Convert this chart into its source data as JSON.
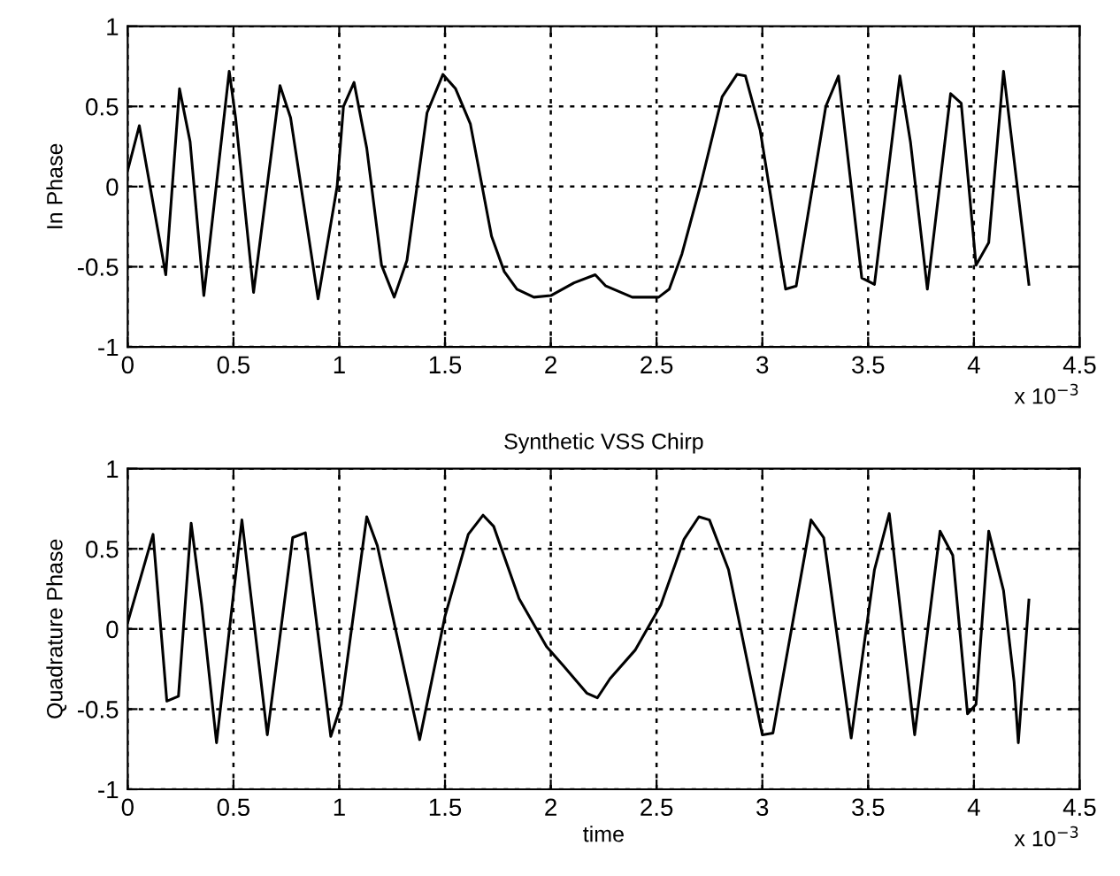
{
  "chart_data": [
    {
      "type": "line",
      "ylabel": "In Phase",
      "annotations": [
        "x 10$^{−3}$"
      ],
      "grid": true,
      "line_style": "solid",
      "xlim": [
        0,
        4.5
      ],
      "ylim": [
        -1,
        1
      ],
      "xticks": [
        0,
        0.5,
        1,
        1.5,
        2,
        2.5,
        3,
        3.5,
        4,
        4.5
      ],
      "yticks": [
        -1,
        -0.5,
        0,
        0.5,
        1
      ],
      "series": [
        {
          "color": "#000000",
          "x": [
            0,
            0.055,
            0.18,
            0.245,
            0.295,
            0.36,
            0.48,
            0.51,
            0.595,
            0.72,
            0.77,
            0.9,
            0.99,
            1.02,
            1.07,
            1.13,
            1.2,
            1.26,
            1.32,
            1.415,
            1.49,
            1.55,
            1.62,
            1.72,
            1.78,
            1.84,
            1.92,
            2.0,
            2.11,
            2.21,
            2.26,
            2.385,
            2.51,
            2.56,
            2.62,
            2.71,
            2.81,
            2.88,
            2.92,
            2.99,
            3.11,
            3.16,
            3.3,
            3.36,
            3.47,
            3.53,
            3.65,
            3.7,
            3.78,
            3.89,
            3.94,
            4.01,
            4.07,
            4.14,
            4.26
          ],
          "values": [
            0.1,
            0.38,
            -0.55,
            0.61,
            0.28,
            -0.68,
            0.72,
            0.43,
            -0.66,
            0.63,
            0.43,
            -0.7,
            0.0,
            0.5,
            0.65,
            0.24,
            -0.49,
            -0.69,
            -0.46,
            0.46,
            0.7,
            0.61,
            0.39,
            -0.31,
            -0.53,
            -0.64,
            -0.69,
            -0.68,
            -0.6,
            -0.55,
            -0.62,
            -0.69,
            -0.69,
            -0.64,
            -0.42,
            0.02,
            0.56,
            0.7,
            0.69,
            0.35,
            -0.64,
            -0.62,
            0.5,
            0.69,
            -0.57,
            -0.61,
            0.69,
            0.28,
            -0.64,
            0.58,
            0.52,
            -0.49,
            -0.35,
            0.72,
            -0.61
          ]
        }
      ]
    },
    {
      "type": "line",
      "title": "Synthetic VSS Chirp",
      "xlabel": "time",
      "ylabel": "Quadrature Phase",
      "annotations": [
        "x 10$^{−3}$"
      ],
      "grid": true,
      "line_style": "solid",
      "xlim": [
        0,
        4.5
      ],
      "ylim": [
        -1,
        1
      ],
      "xticks": [
        0,
        0.5,
        1,
        1.5,
        2,
        2.5,
        3,
        3.5,
        4,
        4.5
      ],
      "yticks": [
        -1,
        -0.5,
        0,
        0.5,
        1
      ],
      "series": [
        {
          "color": "#000000",
          "x": [
            0,
            0.12,
            0.185,
            0.24,
            0.3,
            0.35,
            0.42,
            0.54,
            0.66,
            0.78,
            0.84,
            0.96,
            1.01,
            1.13,
            1.18,
            1.38,
            1.5,
            1.61,
            1.68,
            1.73,
            1.85,
            1.98,
            2.06,
            2.17,
            2.22,
            2.28,
            2.4,
            2.52,
            2.63,
            2.7,
            2.75,
            2.84,
            3.0,
            3.05,
            3.23,
            3.29,
            3.42,
            3.53,
            3.6,
            3.72,
            3.84,
            3.9,
            3.97,
            4.01,
            4.07,
            4.14,
            4.19,
            4.21,
            4.26
          ],
          "values": [
            0.04,
            0.59,
            -0.45,
            -0.42,
            0.66,
            0.15,
            -0.71,
            0.68,
            -0.66,
            0.57,
            0.6,
            -0.67,
            -0.47,
            0.7,
            0.52,
            -0.69,
            0.08,
            0.59,
            0.71,
            0.64,
            0.19,
            -0.11,
            -0.23,
            -0.4,
            -0.43,
            -0.31,
            -0.13,
            0.15,
            0.56,
            0.7,
            0.68,
            0.37,
            -0.66,
            -0.65,
            0.68,
            0.57,
            -0.68,
            0.37,
            0.72,
            -0.66,
            0.61,
            0.46,
            -0.53,
            -0.47,
            0.61,
            0.24,
            -0.33,
            -0.71,
            0.18
          ]
        }
      ]
    }
  ]
}
